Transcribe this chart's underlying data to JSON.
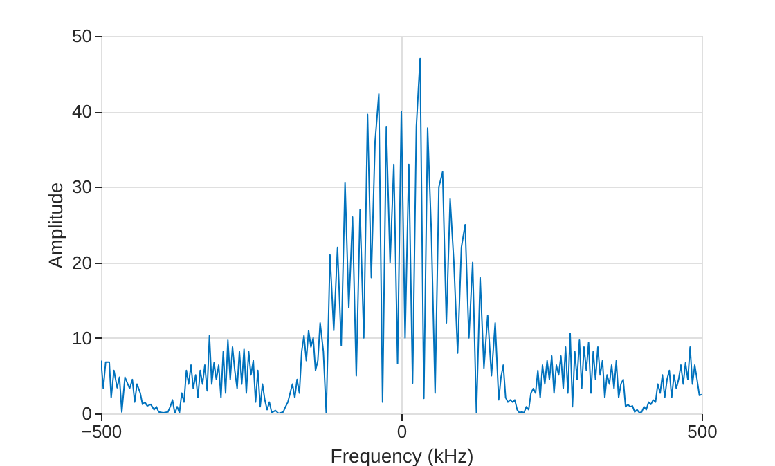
{
  "chart_data": {
    "type": "line",
    "xlabel": "Frequency (kHz)",
    "ylabel": "Amplitude",
    "xlim": [
      -500,
      500
    ],
    "xticks": [
      -500,
      0,
      500
    ],
    "ylim": [
      0,
      50
    ],
    "yticks": [
      0,
      10,
      20,
      30,
      40,
      50
    ],
    "grid": true,
    "marker": "none",
    "line_style": "solid",
    "x": [
      -500,
      -496.2,
      -492.3,
      -486.2,
      -483.1,
      -478.5,
      -473.1,
      -469.3,
      -465.4,
      -460.1,
      -455.5,
      -452.4,
      -447.8,
      -443.9,
      -440.1,
      -434.7,
      -430.9,
      -427,
      -423.2,
      -417.1,
      -411.7,
      -407.8,
      -404,
      -396.3,
      -388.6,
      -384.8,
      -381,
      -377.1,
      -373.3,
      -369.4,
      -365.6,
      -361.8,
      -357.9,
      -354.1,
      -350.2,
      -346.4,
      -342.5,
      -338.7,
      -334.9,
      -331,
      -327.2,
      -323.3,
      -319.5,
      -315.7,
      -311.8,
      -308,
      -304.1,
      -300.3,
      -296.5,
      -292.6,
      -288.8,
      -284.9,
      -281.1,
      -277.3,
      -273.4,
      -269.6,
      -265.7,
      -261.9,
      -258.1,
      -254.2,
      -250.4,
      -246.5,
      -242.7,
      -238.9,
      -235,
      -231.2,
      -227.3,
      -223.5,
      -219.7,
      -215.8,
      -209.7,
      -204.3,
      -196.6,
      -192.8,
      -188.9,
      -185.1,
      -181.3,
      -177.4,
      -173.6,
      -169.7,
      -165.9,
      -162.1,
      -158.2,
      -154.4,
      -150.5,
      -146.7,
      -142.9,
      -139,
      -135.2,
      -129.8,
      -125,
      -118.75,
      -112.5,
      -106.25,
      -100,
      -93.75,
      -87.5,
      -81.25,
      -75,
      -68.75,
      -62.5,
      -56.25,
      -50,
      -43.75,
      -37.5,
      -31.25,
      -25,
      -18.75,
      -12.5,
      -6.25,
      0,
      6.25,
      12.5,
      18.75,
      25,
      31.25,
      37.5,
      43.75,
      50,
      56.25,
      62.5,
      68.75,
      75,
      81.25,
      87.5,
      93.75,
      100,
      106.25,
      112.5,
      118.75,
      125,
      131.25,
      137.5,
      143.75,
      150,
      156.25,
      162.1,
      165.9,
      169.7,
      173.6,
      177.4,
      181.3,
      185.1,
      188.9,
      192.8,
      196.6,
      200.5,
      204.3,
      208.1,
      212,
      215.8,
      219.7,
      223.5,
      227.3,
      231.2,
      235,
      238.9,
      242.7,
      246.5,
      250.4,
      254.2,
      258.1,
      261.9,
      265.7,
      269.6,
      273.4,
      277.3,
      281.1,
      284.9,
      288.8,
      292.6,
      296.5,
      300.3,
      304.1,
      308,
      311.8,
      315.7,
      319.5,
      323.3,
      327.2,
      331,
      334.9,
      338.7,
      342.5,
      346.4,
      350.2,
      354.1,
      357.9,
      361.8,
      365.6,
      369.4,
      373.3,
      377.1,
      381,
      384.8,
      388.6,
      392.5,
      396.3,
      400.2,
      404,
      407.8,
      411.7,
      415.5,
      419.3,
      423.2,
      427,
      430.9,
      434.7,
      438.5,
      442.4,
      446.2,
      450.1,
      453.9,
      457.8,
      461.6,
      465.4,
      469.3,
      473.1,
      477,
      480.8,
      484.6,
      488.5,
      492.3,
      496.2,
      500
    ],
    "series": [
      {
        "color": "#0072bd",
        "values": [
          7,
          3.3,
          6.8,
          6.8,
          2.1,
          5.7,
          3.4,
          4.8,
          0.2,
          4.8,
          3.9,
          3.3,
          4.5,
          1.5,
          3.9,
          2.7,
          1.2,
          1.5,
          1,
          1.2,
          0.5,
          0.9,
          0.2,
          0.1,
          0.2,
          0.9,
          1.8,
          0,
          0.9,
          0.1,
          2.7,
          1.5,
          5.7,
          3.9,
          6.4,
          3.3,
          5.1,
          2.1,
          5.7,
          3.9,
          6.4,
          3,
          10.3,
          3.9,
          6.7,
          4.5,
          6.4,
          2.1,
          8.2,
          2.7,
          9.7,
          4.5,
          8.8,
          5.7,
          3.3,
          8.2,
          3.9,
          8.5,
          2.7,
          8.2,
          5.1,
          7,
          1.5,
          5.7,
          0.9,
          3.9,
          1.8,
          0.5,
          1.5,
          0.1,
          0.4,
          0,
          0.2,
          0.9,
          1.5,
          2.7,
          3.9,
          2.1,
          4.5,
          2.7,
          8.2,
          10.3,
          7,
          11,
          8.8,
          10,
          5.7,
          7,
          12,
          8.2,
          0,
          21,
          11,
          22,
          9,
          30.6,
          14,
          26,
          5,
          27,
          10,
          39.6,
          18,
          36,
          42.3,
          1.5,
          38,
          20,
          33,
          6.6,
          40,
          10,
          33,
          4,
          38,
          47,
          2,
          37.8,
          24,
          2.7,
          30,
          32,
          12,
          28.4,
          20,
          8,
          22,
          25,
          10,
          20,
          0,
          18,
          6,
          13,
          5,
          12,
          1.8,
          4.8,
          6.4,
          2.1,
          1.5,
          1.8,
          1.5,
          1.8,
          0.5,
          0.1,
          0.2,
          0.1,
          0.9,
          0.5,
          2.7,
          3.3,
          2.7,
          5.7,
          2.1,
          6.4,
          3.9,
          7,
          4.5,
          7.6,
          2.7,
          6.4,
          5.1,
          7.6,
          3.3,
          8.8,
          2.7,
          10.6,
          0.9,
          8.2,
          4.5,
          9.7,
          3.3,
          8.8,
          5.7,
          9.4,
          2.7,
          8.2,
          4.5,
          8.8,
          5.1,
          7,
          2.1,
          5.1,
          3.9,
          6.4,
          3.3,
          7,
          2.1,
          3.9,
          4.5,
          0.9,
          1.2,
          0.9,
          1,
          0.2,
          0.5,
          0.1,
          0.2,
          0.9,
          0.5,
          1.5,
          1.2,
          1.8,
          1.5,
          3.9,
          2.7,
          5.1,
          2.1,
          4.5,
          5.7,
          2.1,
          5.1,
          3.3,
          4.5,
          6.4,
          3.9,
          6.7,
          4.5,
          8.8,
          3.9,
          6.4,
          4.5,
          2.4,
          2.5
        ]
      }
    ]
  }
}
